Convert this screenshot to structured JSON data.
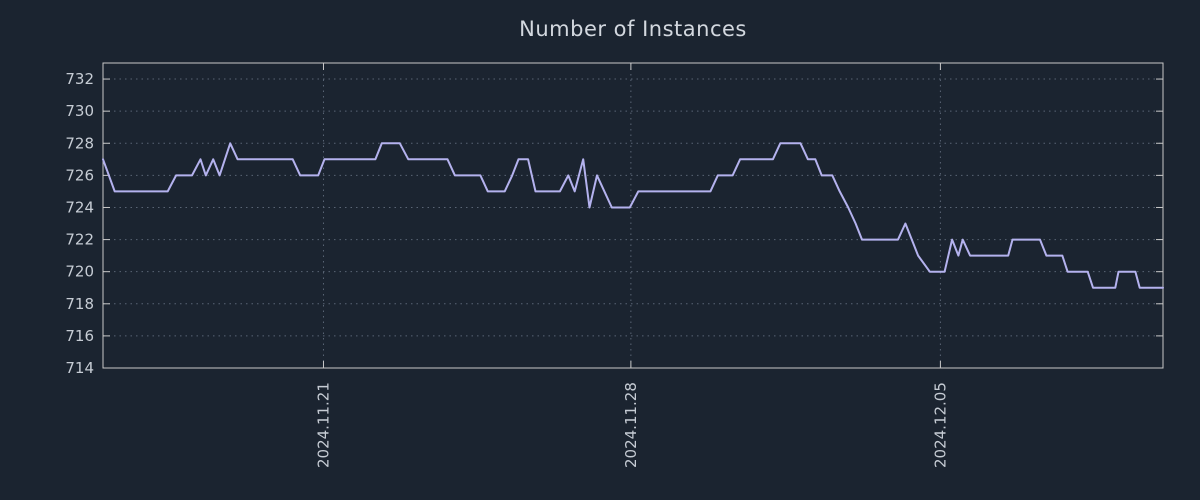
{
  "colors": {
    "background": "#1b2430",
    "line": "#b4b2ee",
    "plot_border": "#c9c9c9",
    "grid": "#5a6575",
    "title_text": "#d3d8df",
    "tick_text": "#c6ccd4"
  },
  "chart_data": {
    "type": "line",
    "title": "Number of Instances",
    "xlabel": "",
    "ylabel": "",
    "ylim": [
      714,
      733
    ],
    "yticks": [
      714,
      716,
      718,
      720,
      722,
      724,
      726,
      728,
      730,
      732
    ],
    "xticks": [
      {
        "pos": 0.208,
        "label": "2024.11.21"
      },
      {
        "pos": 0.498,
        "label": "2024.11.28"
      },
      {
        "pos": 0.79,
        "label": "2024.12.05"
      }
    ],
    "grid": true,
    "legend": "none",
    "series": [
      {
        "name": "instances",
        "points": [
          [
            0.0,
            727
          ],
          [
            0.011,
            725
          ],
          [
            0.061,
            725
          ],
          [
            0.069,
            726
          ],
          [
            0.084,
            726
          ],
          [
            0.092,
            727
          ],
          [
            0.097,
            726
          ],
          [
            0.104,
            727
          ],
          [
            0.11,
            726
          ],
          [
            0.12,
            728
          ],
          [
            0.127,
            727
          ],
          [
            0.179,
            727
          ],
          [
            0.186,
            726
          ],
          [
            0.203,
            726
          ],
          [
            0.209,
            727
          ],
          [
            0.257,
            727
          ],
          [
            0.263,
            728
          ],
          [
            0.28,
            728
          ],
          [
            0.288,
            727
          ],
          [
            0.325,
            727
          ],
          [
            0.332,
            726
          ],
          [
            0.356,
            726
          ],
          [
            0.363,
            725
          ],
          [
            0.379,
            725
          ],
          [
            0.386,
            726
          ],
          [
            0.392,
            727
          ],
          [
            0.401,
            727
          ],
          [
            0.408,
            725
          ],
          [
            0.431,
            725
          ],
          [
            0.439,
            726
          ],
          [
            0.445,
            725
          ],
          [
            0.453,
            727
          ],
          [
            0.459,
            724
          ],
          [
            0.466,
            726
          ],
          [
            0.473,
            725
          ],
          [
            0.48,
            724
          ],
          [
            0.497,
            724
          ],
          [
            0.505,
            725
          ],
          [
            0.573,
            725
          ],
          [
            0.58,
            726
          ],
          [
            0.594,
            726
          ],
          [
            0.601,
            727
          ],
          [
            0.632,
            727
          ],
          [
            0.639,
            728
          ],
          [
            0.658,
            728
          ],
          [
            0.665,
            727
          ],
          [
            0.672,
            727
          ],
          [
            0.678,
            726
          ],
          [
            0.688,
            726
          ],
          [
            0.695,
            725
          ],
          [
            0.703,
            724
          ],
          [
            0.71,
            723
          ],
          [
            0.716,
            722
          ],
          [
            0.75,
            722
          ],
          [
            0.757,
            723
          ],
          [
            0.763,
            722
          ],
          [
            0.769,
            721
          ],
          [
            0.78,
            720
          ],
          [
            0.794,
            720
          ],
          [
            0.801,
            722
          ],
          [
            0.807,
            721
          ],
          [
            0.811,
            722
          ],
          [
            0.818,
            721
          ],
          [
            0.854,
            721
          ],
          [
            0.858,
            722
          ],
          [
            0.884,
            722
          ],
          [
            0.89,
            721
          ],
          [
            0.905,
            721
          ],
          [
            0.91,
            720
          ],
          [
            0.929,
            720
          ],
          [
            0.934,
            719
          ],
          [
            0.955,
            719
          ],
          [
            0.958,
            720
          ],
          [
            0.974,
            720
          ],
          [
            0.978,
            719
          ],
          [
            1.0,
            719
          ]
        ]
      }
    ]
  }
}
